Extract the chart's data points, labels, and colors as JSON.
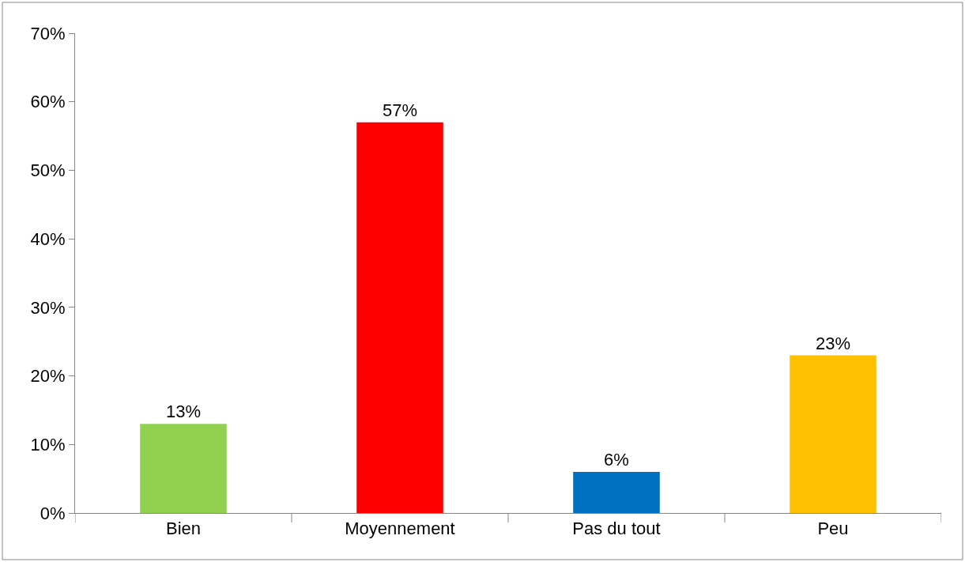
{
  "chart_data": {
    "type": "bar",
    "categories": [
      "Bien",
      "Moyennement",
      "Pas du tout",
      "Peu"
    ],
    "values": [
      13,
      57,
      6,
      23
    ],
    "colors": [
      "#92d050",
      "#ff0000",
      "#0070c0",
      "#ffc000"
    ],
    "value_labels": [
      "13%",
      "57%",
      "6%",
      "23%"
    ],
    "ylim": [
      0,
      70
    ],
    "yticks": [
      {
        "value": 0,
        "label": "0%"
      },
      {
        "value": 10,
        "label": "10%"
      },
      {
        "value": 20,
        "label": "20%"
      },
      {
        "value": 30,
        "label": "30%"
      },
      {
        "value": 40,
        "label": "40%"
      },
      {
        "value": 50,
        "label": "50%"
      },
      {
        "value": 60,
        "label": "60%"
      },
      {
        "value": 70,
        "label": "70%"
      }
    ],
    "legend": false
  }
}
